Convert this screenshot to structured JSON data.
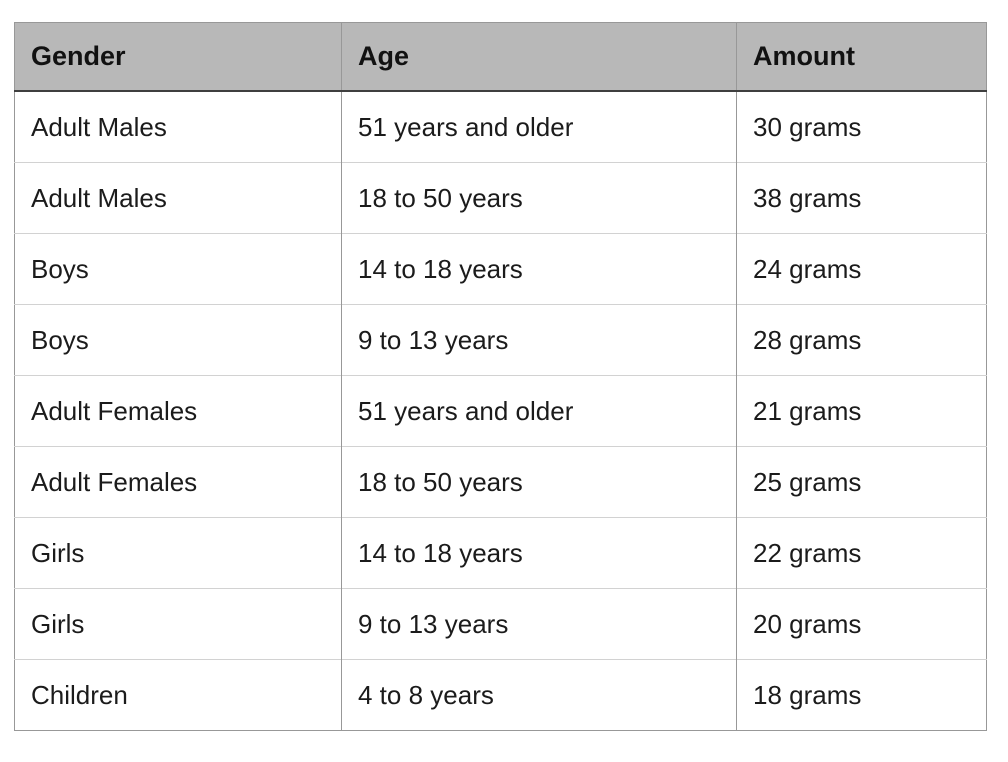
{
  "chart_data": {
    "type": "table",
    "columns": [
      "Gender",
      "Age",
      "Amount"
    ],
    "rows": [
      [
        "Adult Males",
        "51 years and older",
        "30 grams"
      ],
      [
        "Adult Males",
        "18 to 50 years",
        "38 grams"
      ],
      [
        "Boys",
        "14 to 18 years",
        "24 grams"
      ],
      [
        "Boys",
        "9 to 13 years",
        "28 grams"
      ],
      [
        "Adult Females",
        "51 years and older",
        "21 grams"
      ],
      [
        "Adult Females",
        "18 to 50 years",
        "25 grams"
      ],
      [
        "Girls",
        "14 to 18 years",
        "22 grams"
      ],
      [
        "Girls",
        "9 to 13 years",
        "20 grams"
      ],
      [
        "Children",
        "4 to 8 years",
        "18 grams"
      ]
    ]
  },
  "colors": {
    "header_background": "#b8b8b8",
    "header_bottom_border": "#3f3f3f",
    "column_divider": "#989898",
    "row_separator": "#d2d2d2",
    "outer_border": "#989898",
    "text": "#1b1b1b",
    "page_background": "#ffffff"
  }
}
